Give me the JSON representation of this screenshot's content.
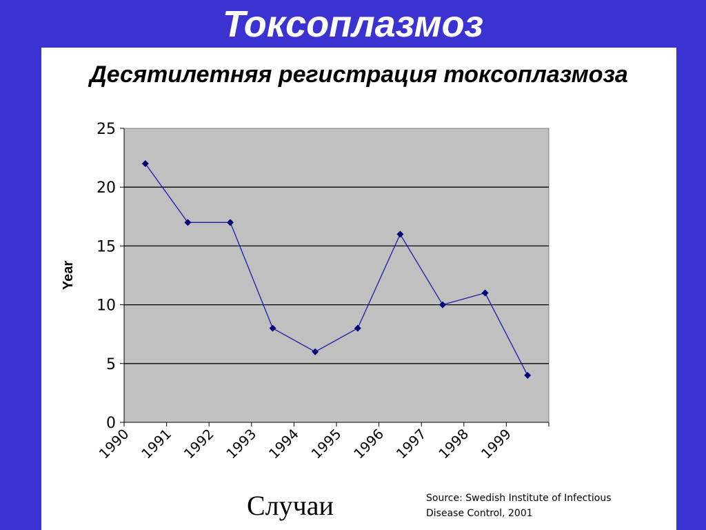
{
  "slide": {
    "title": "Токсоплазмоз"
  },
  "panel": {
    "subtitle": "Десятилетняя регистрация токсоплазмоза",
    "x_caption": "Случаи",
    "source_line1": "Source:  Swedish Institute of Infectious",
    "source_line2": "Disease Control, 2001"
  },
  "colors": {
    "background": "#3b33d1",
    "plot_area": "#c0c0c0",
    "series_line": "#1a1aa6",
    "marker": "#00007a",
    "gridline": "#000000"
  },
  "chart_data": {
    "type": "line",
    "title": "",
    "xlabel": "",
    "ylabel": "Year",
    "categories": [
      "1990",
      "1991",
      "1992",
      "1993",
      "1994",
      "1995",
      "1996",
      "1997",
      "1998",
      "1999"
    ],
    "values": [
      22,
      17,
      17,
      8,
      6,
      8,
      16,
      10,
      11,
      4
    ],
    "yticks": [
      0,
      5,
      10,
      15,
      20,
      25
    ],
    "ylim": [
      0,
      25
    ],
    "grid": true,
    "legend": "none",
    "marker": "diamond"
  }
}
